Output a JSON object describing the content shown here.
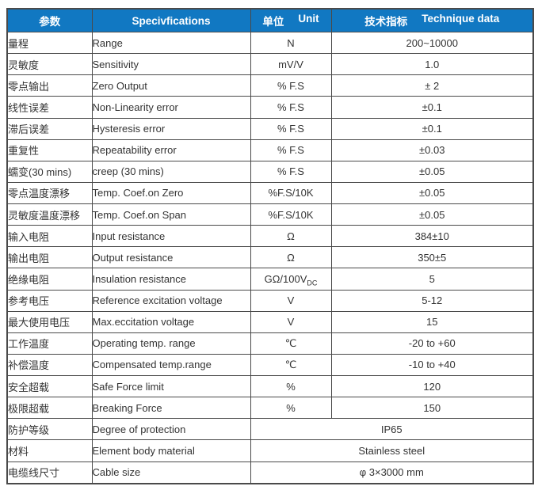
{
  "colors": {
    "header_bg": "#1178c2",
    "header_text": "#ffffff",
    "border": "#4a4a4a",
    "cell_text": "#333333"
  },
  "table": {
    "header": {
      "param_cn": "参数",
      "spec_en": "Specivfications",
      "unit_cn": "单位",
      "unit_en": "Unit",
      "data_cn": "技术指标",
      "data_en": "Technique data"
    },
    "rows": [
      {
        "param": "量程",
        "spec": "Range",
        "unit": "N",
        "value": "200~10000"
      },
      {
        "param": "灵敏度",
        "spec": "Sensitivity",
        "unit": "mV/V",
        "value": "1.0"
      },
      {
        "param": "零点输出",
        "spec": "Zero Output",
        "unit": "% F.S",
        "value": "± 2"
      },
      {
        "param": "线性误差",
        "spec": "Non-Linearity error",
        "unit": "% F.S",
        "value": "±0.1"
      },
      {
        "param": "滞后误差",
        "spec": "Hysteresis error",
        "unit": "% F.S",
        "value": "±0.1"
      },
      {
        "param": "重复性",
        "spec": "Repeatability error",
        "unit": "% F.S",
        "value": "±0.03"
      },
      {
        "param": "蠕变(30 mins)",
        "spec": "creep (30 mins)",
        "unit": "% F.S",
        "value": "±0.05"
      },
      {
        "param": "零点温度漂移",
        "spec": "Temp. Coef.on Zero",
        "unit": "%F.S/10K",
        "value": "±0.05"
      },
      {
        "param": "灵敏度温度漂移",
        "spec": "Temp. Coef.on Span",
        "unit": "%F.S/10K",
        "value": "±0.05"
      },
      {
        "param": "输入电阻",
        "spec": "Input resistance",
        "unit": "Ω",
        "value": "384±10"
      },
      {
        "param": "输出电阻",
        "spec": "Output resistance",
        "unit": "Ω",
        "value": "350±5"
      },
      {
        "param": "绝缘电阻",
        "spec": "Insulation resistance",
        "unit": "GΩ/100V",
        "unit_sub": "DC",
        "value": "5"
      },
      {
        "param": "参考电压",
        "spec": "Reference excitation voltage",
        "unit": "V",
        "value": "5-12"
      },
      {
        "param": "最大使用电压",
        "spec": "Max.eccitation voltage",
        "unit": "V",
        "value": "15"
      },
      {
        "param": "工作温度",
        "spec": "Operating temp. range",
        "unit": "℃",
        "value": "-20 to +60"
      },
      {
        "param": "补偿温度",
        "spec": "Compensated temp.range",
        "unit": "℃",
        "value": "-10 to +40"
      },
      {
        "param": "安全超载",
        "spec": "Safe Force limit",
        "unit": "%",
        "value": "120"
      },
      {
        "param": "极限超载",
        "spec": "Breaking Force",
        "unit": "%",
        "value": "150"
      },
      {
        "param": "防护等级",
        "spec": "Degree of protection",
        "span": true,
        "value": "IP65"
      },
      {
        "param": "材料",
        "spec": "Element body material",
        "span": true,
        "value": "Stainless steel"
      },
      {
        "param": "电缆线尺寸",
        "spec": "Cable size",
        "span": true,
        "value": "φ 3×3000 mm"
      }
    ]
  }
}
